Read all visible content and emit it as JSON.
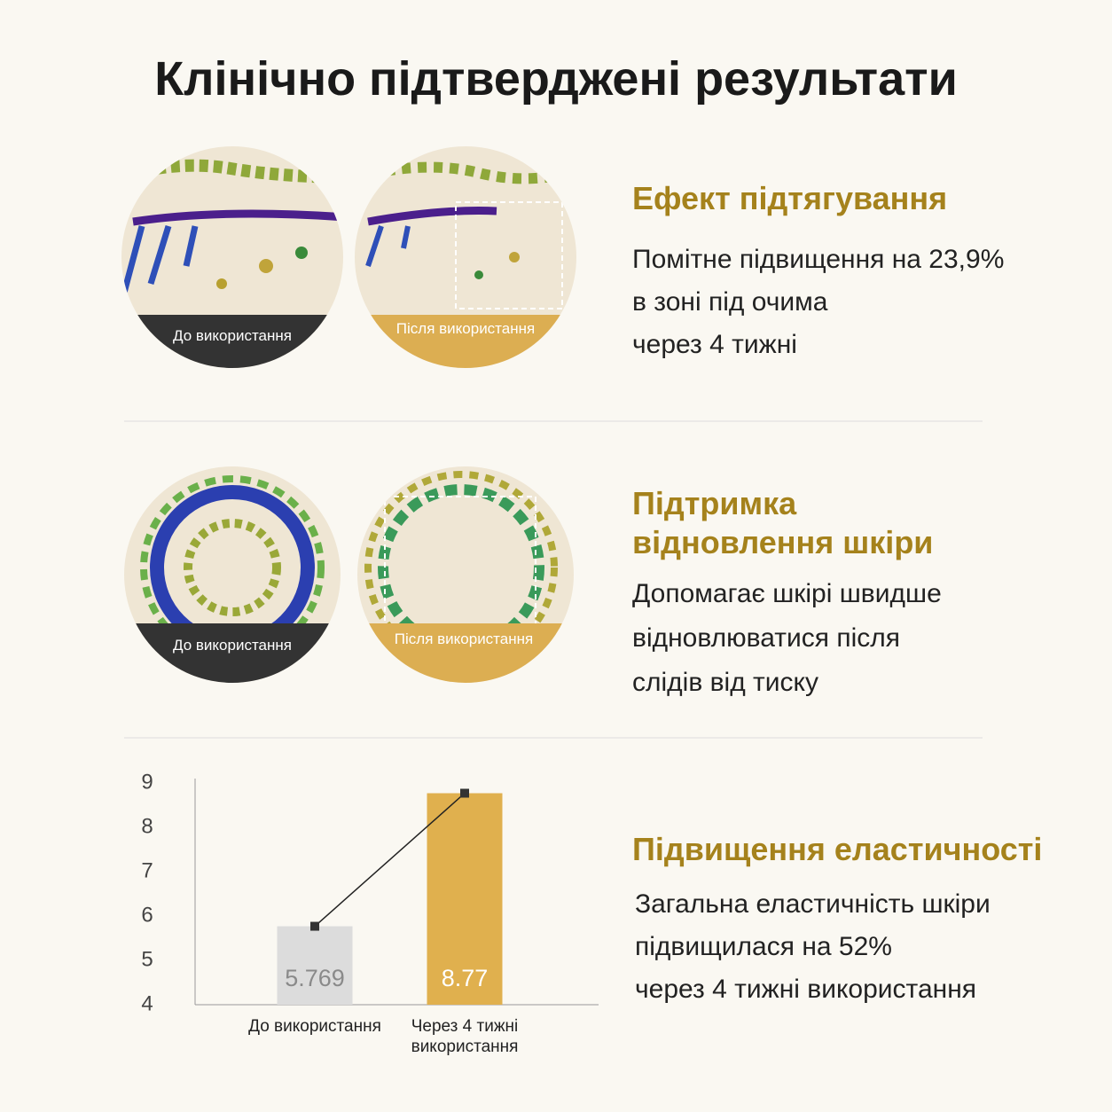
{
  "title": "Клінічно підтверджені результати",
  "sections": [
    {
      "heading": "Ефект підтягування",
      "lines": [
        "Помітне підвищення на 23,9%",
        "в зоні під очима",
        "через 4 тижні"
      ],
      "before_label": "До використання",
      "after_label": "Після використання"
    },
    {
      "heading": "Підтримка відновлення шкіри",
      "lines": [
        "Допомагає шкірі швидше",
        "відновлюватися після",
        "слідів від тиску"
      ],
      "before_label": "До використання",
      "after_label": "Після використання"
    },
    {
      "heading": "Підвищення еластичності",
      "lines": [
        "Загальна еластичність шкіри",
        "підвищилася на 52%",
        "через 4 тижні використання"
      ]
    }
  ],
  "chart_data": {
    "type": "bar",
    "categories": [
      "До використання",
      "Через 4 тижні використання"
    ],
    "values": [
      5.769,
      8.77
    ],
    "colors": [
      "#dcdcdc",
      "#e0b04e"
    ],
    "label_colors": [
      "#8a8a8a",
      "#ffffff"
    ],
    "ylim": [
      4,
      9
    ],
    "yticks": [
      4,
      5,
      6,
      7,
      8,
      9
    ],
    "connector": true,
    "grid": false
  }
}
